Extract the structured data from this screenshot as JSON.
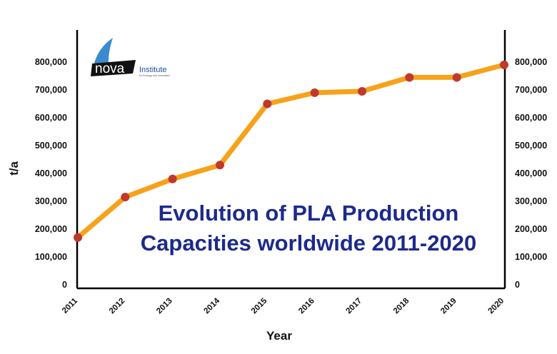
{
  "logo": {
    "word": "nova",
    "institute": "Institute",
    "tagline": "for Ecology and Innovation"
  },
  "chart_data": {
    "type": "line",
    "title": "Evolution of PLA Production Capacities worldwide 2011-2020",
    "title_lines": [
      "Evolution of PLA Production",
      "Capacities worldwide 2011-2020"
    ],
    "xlabel": "Year",
    "ylabel": "t/a",
    "categories": [
      "2011",
      "2012",
      "2013",
      "2014",
      "2015",
      "2016",
      "2017",
      "2018",
      "2019",
      "2020"
    ],
    "series": [
      {
        "values": [
          170000,
          315000,
          380000,
          430000,
          650000,
          690000,
          695000,
          745000,
          745000,
          790000
        ]
      }
    ],
    "ylim": [
      0,
      800000
    ],
    "yticks": [
      "0",
      "100,000",
      "200,000",
      "300,000",
      "400,000",
      "500,000",
      "600,000",
      "700,000",
      "800,000"
    ],
    "secondary_y_axis": true,
    "grid": false,
    "colors": {
      "line": "#f7a21b",
      "marker": "#c0392b",
      "title": "#1c2a8c",
      "axis": "#000000"
    }
  }
}
